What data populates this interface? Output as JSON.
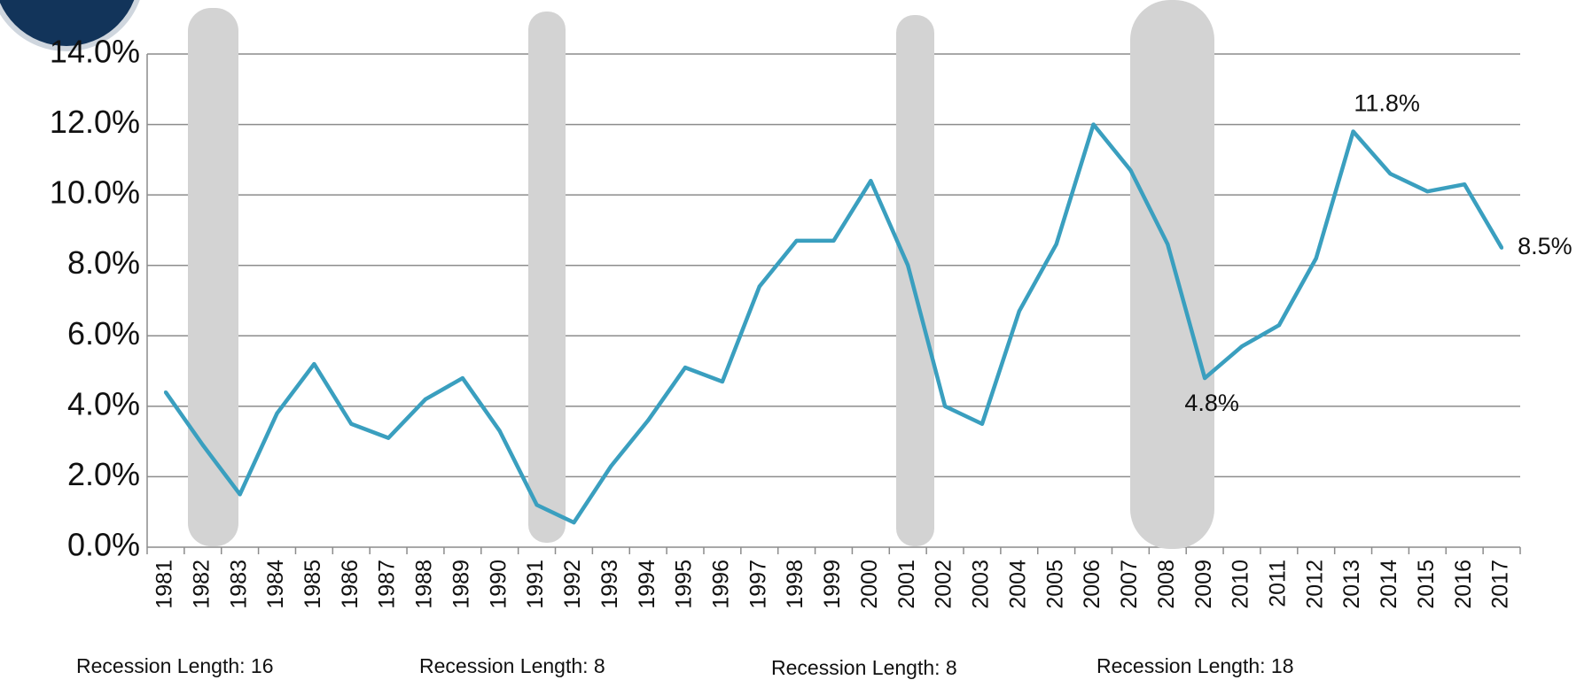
{
  "chart_data": {
    "type": "line",
    "categories": [
      "1981",
      "1982",
      "1983",
      "1984",
      "1985",
      "1986",
      "1987",
      "1988",
      "1989",
      "1990",
      "1991",
      "1992",
      "1993",
      "1994",
      "1995",
      "1996",
      "1997",
      "1998",
      "1999",
      "2000",
      "2001",
      "2002",
      "2003",
      "2004",
      "2005",
      "2006",
      "2007",
      "2008",
      "2009",
      "2010",
      "2011",
      "2012",
      "2013",
      "2014",
      "2015",
      "2016",
      "2017"
    ],
    "values": [
      4.4,
      2.9,
      1.5,
      3.8,
      5.2,
      3.5,
      3.1,
      4.2,
      4.8,
      3.3,
      1.2,
      0.7,
      2.3,
      3.6,
      5.1,
      4.7,
      7.4,
      8.7,
      8.7,
      10.4,
      8.0,
      4.0,
      3.5,
      6.7,
      8.6,
      12.0,
      10.7,
      8.6,
      4.8,
      5.7,
      6.3,
      8.2,
      11.8,
      10.6,
      10.1,
      10.3,
      8.5
    ],
    "value_labels": [
      null,
      null,
      null,
      null,
      null,
      null,
      null,
      null,
      null,
      null,
      null,
      null,
      null,
      null,
      null,
      null,
      null,
      null,
      null,
      null,
      null,
      null,
      null,
      null,
      null,
      null,
      null,
      null,
      "4.8%",
      null,
      null,
      null,
      "11.8%",
      null,
      null,
      null,
      "8.5%"
    ],
    "color": "#3a9fbf",
    "ylim": [
      0,
      14
    ],
    "yticks": [
      {
        "value": 0,
        "label": "0.0%"
      },
      {
        "value": 2,
        "label": "2.0%"
      },
      {
        "value": 4,
        "label": "4.0%"
      },
      {
        "value": 6,
        "label": "6.0%"
      },
      {
        "value": 8,
        "label": "8.0%"
      },
      {
        "value": 10,
        "label": "10.0%"
      },
      {
        "value": 12,
        "label": "12.0%"
      },
      {
        "value": 14,
        "label": "14.0%"
      }
    ],
    "grid": true,
    "annotations": [
      "Recession Length: 16",
      "Recession Length: 8",
      "Recession Length: 8",
      "Recession Length: 18"
    ]
  }
}
